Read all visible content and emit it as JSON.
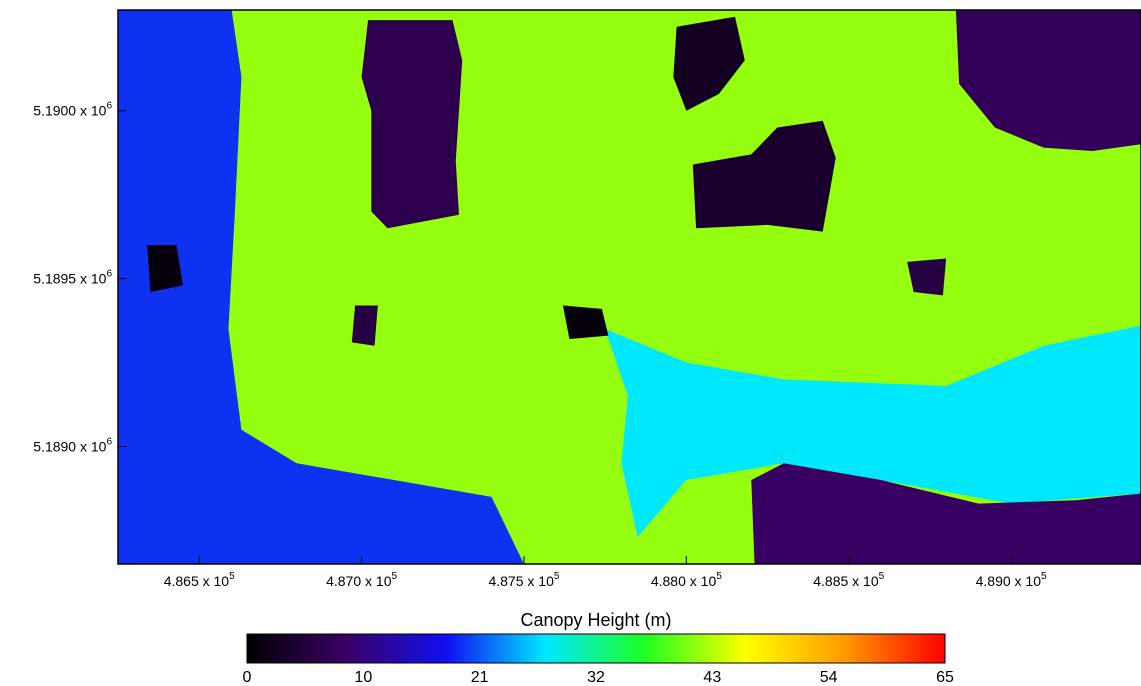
{
  "chart_data": {
    "type": "heatmap",
    "colorbar": {
      "title": "Canopy Height (m)",
      "ticks": [
        "0",
        "10",
        "21",
        "32",
        "43",
        "54",
        "65"
      ],
      "range": [
        0,
        65
      ],
      "stops": [
        "#000000",
        "#3a0066",
        "#1010f0",
        "#00e8ff",
        "#20ff20",
        "#ffff00",
        "#ff9900",
        "#ff0000"
      ]
    },
    "x_axis": {
      "range": [
        486250,
        489400
      ],
      "ticks": [
        486500,
        487000,
        487500,
        488000,
        488500,
        489000
      ],
      "tick_labels": [
        {
          "mantissa": "4.865 x 10",
          "exp": "5"
        },
        {
          "mantissa": "4.870 x 10",
          "exp": "5"
        },
        {
          "mantissa": "4.875 x 10",
          "exp": "5"
        },
        {
          "mantissa": "4.880 x 10",
          "exp": "5"
        },
        {
          "mantissa": "4.885 x 10",
          "exp": "5"
        },
        {
          "mantissa": "4.890 x 10",
          "exp": "5"
        }
      ]
    },
    "y_axis": {
      "range": [
        5188650,
        5190300
      ],
      "ticks": [
        5190000,
        5189500,
        5189000
      ],
      "tick_labels": [
        {
          "mantissa": "5.1900 x 10",
          "exp": "6"
        },
        {
          "mantissa": "5.1895 x 10",
          "exp": "6"
        },
        {
          "mantissa": "5.1890 x 10",
          "exp": "6"
        }
      ]
    },
    "regions": [
      {
        "name": "background",
        "kind": "rect",
        "x": [
          486250,
          489400
        ],
        "y": [
          5188650,
          5190300
        ],
        "value": 42
      },
      {
        "name": "west-forest-edge",
        "kind": "poly",
        "value": 20,
        "pts": [
          [
            486250,
            5190300
          ],
          [
            486600,
            5190300
          ],
          [
            486630,
            5190100
          ],
          [
            486610,
            5189700
          ],
          [
            486590,
            5189350
          ],
          [
            486630,
            5189050
          ],
          [
            486800,
            5188950
          ],
          [
            487100,
            5188900
          ],
          [
            487400,
            5188850
          ],
          [
            487500,
            5188650
          ],
          [
            486250,
            5188650
          ]
        ]
      },
      {
        "name": "north-east-dark-patch",
        "kind": "poly",
        "value": 8,
        "pts": [
          [
            488830,
            5190300
          ],
          [
            489400,
            5190300
          ],
          [
            489400,
            5189900
          ],
          [
            489250,
            5189880
          ],
          [
            489100,
            5189890
          ],
          [
            488950,
            5189950
          ],
          [
            488840,
            5190080
          ]
        ]
      },
      {
        "name": "lake-north",
        "kind": "poly",
        "value": 7,
        "pts": [
          [
            487020,
            5190270
          ],
          [
            487280,
            5190270
          ],
          [
            487310,
            5190150
          ],
          [
            487290,
            5189850
          ],
          [
            487300,
            5189690
          ],
          [
            487080,
            5189650
          ],
          [
            487030,
            5189700
          ],
          [
            487030,
            5190000
          ],
          [
            487000,
            5190100
          ]
        ]
      },
      {
        "name": "dark-cluster-north",
        "kind": "poly",
        "value": 3,
        "pts": [
          [
            487970,
            5190250
          ],
          [
            488150,
            5190280
          ],
          [
            488180,
            5190150
          ],
          [
            488100,
            5190050
          ],
          [
            488000,
            5190000
          ],
          [
            487960,
            5190100
          ]
        ]
      },
      {
        "name": "dark-cluster-middle",
        "kind": "poly",
        "value": 4,
        "pts": [
          [
            488020,
            5189840
          ],
          [
            488200,
            5189870
          ],
          [
            488280,
            5189950
          ],
          [
            488420,
            5189970
          ],
          [
            488460,
            5189860
          ],
          [
            488420,
            5189640
          ],
          [
            488250,
            5189660
          ],
          [
            488030,
            5189650
          ]
        ]
      },
      {
        "name": "south-cyan-clearing",
        "kind": "poly",
        "value": 28,
        "pts": [
          [
            487750,
            5189350
          ],
          [
            488000,
            5189250
          ],
          [
            488300,
            5189200
          ],
          [
            488800,
            5189180
          ],
          [
            489100,
            5189300
          ],
          [
            489400,
            5189360
          ],
          [
            489400,
            5188860
          ],
          [
            489000,
            5188830
          ],
          [
            488600,
            5188900
          ],
          [
            488300,
            5188950
          ],
          [
            488000,
            5188900
          ],
          [
            487850,
            5188730
          ],
          [
            487800,
            5188950
          ],
          [
            487820,
            5189150
          ]
        ]
      },
      {
        "name": "south-east-dark-band",
        "kind": "poly",
        "value": 9,
        "pts": [
          [
            488210,
            5188650
          ],
          [
            489400,
            5188650
          ],
          [
            489400,
            5188860
          ],
          [
            489200,
            5188840
          ],
          [
            488900,
            5188830
          ],
          [
            488600,
            5188900
          ],
          [
            488300,
            5188950
          ],
          [
            488200,
            5188900
          ]
        ]
      },
      {
        "name": "west-dark-spot",
        "kind": "poly",
        "value": 1,
        "pts": [
          [
            486340,
            5189600
          ],
          [
            486430,
            5189600
          ],
          [
            486450,
            5189480
          ],
          [
            486350,
            5189460
          ]
        ]
      },
      {
        "name": "center-dark-spot",
        "kind": "poly",
        "value": 1,
        "pts": [
          [
            487620,
            5189420
          ],
          [
            487740,
            5189410
          ],
          [
            487760,
            5189330
          ],
          [
            487640,
            5189320
          ]
        ]
      },
      {
        "name": "small-spot-1",
        "kind": "poly",
        "value": 6,
        "pts": [
          [
            486980,
            5189420
          ],
          [
            487050,
            5189420
          ],
          [
            487040,
            5189300
          ],
          [
            486970,
            5189310
          ]
        ]
      },
      {
        "name": "small-spot-2",
        "kind": "poly",
        "value": 6,
        "pts": [
          [
            488680,
            5189550
          ],
          [
            488800,
            5189560
          ],
          [
            488790,
            5189450
          ],
          [
            488700,
            5189460
          ]
        ]
      }
    ]
  }
}
